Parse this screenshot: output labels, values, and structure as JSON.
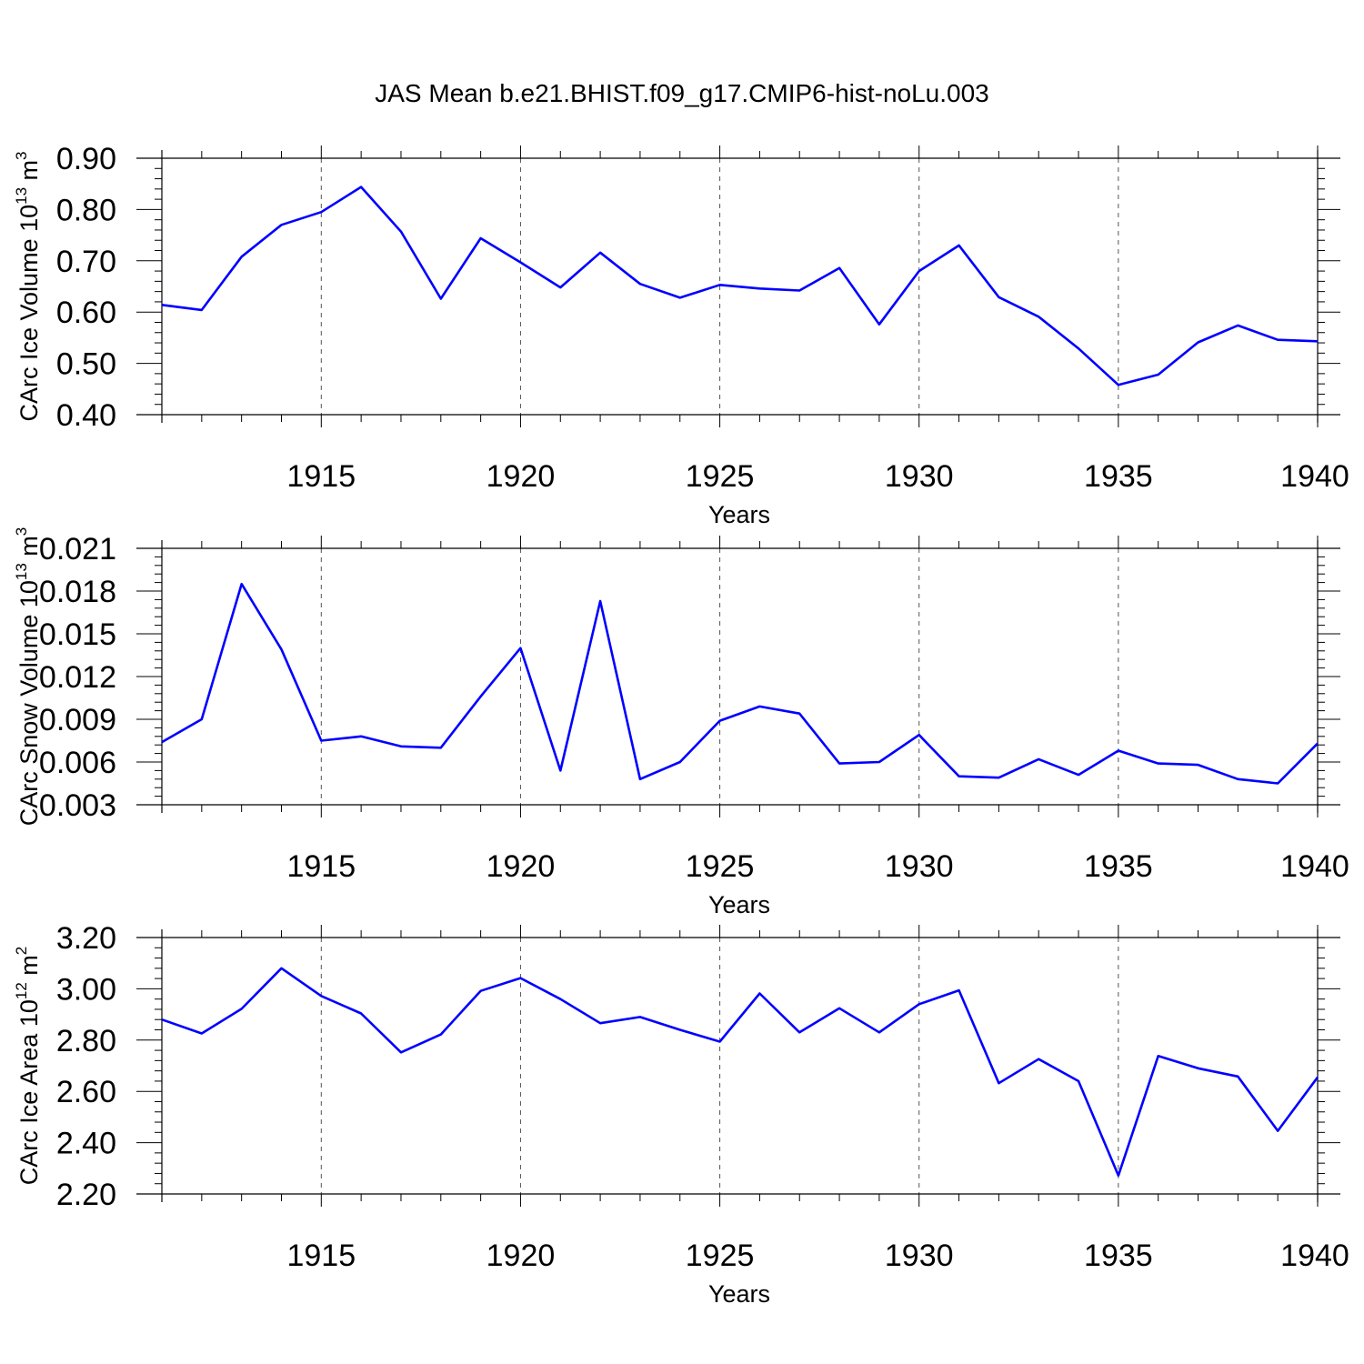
{
  "title": "JAS Mean b.e21.BHIST.f09_g17.CMIP6-hist-noLu.003",
  "chart_data": [
    {
      "type": "line",
      "ylabel_main": "CArc Ice Volume 10",
      "ylabel_exp": "13",
      "ylabel_unit": " m",
      "ylabel_unit_exp": "3",
      "xlabel": "Years",
      "xlim": [
        1911,
        1940
      ],
      "xticks": [
        1915,
        1920,
        1925,
        1930,
        1935,
        1940
      ],
      "ylim": [
        0.4,
        0.9
      ],
      "yticks": [
        "0.40",
        "0.50",
        "0.60",
        "0.70",
        "0.80",
        "0.90"
      ],
      "color": "#0000ff",
      "grid": "vertical dashed at major x ticks",
      "series": [
        {
          "x": [
            1911,
            1912,
            1913,
            1914,
            1915,
            1916,
            1917,
            1918,
            1919,
            1920,
            1921,
            1922,
            1923,
            1924,
            1925,
            1926,
            1927,
            1928,
            1929,
            1930,
            1931,
            1932,
            1933,
            1934,
            1935,
            1936,
            1937,
            1938,
            1939,
            1940
          ],
          "values": [
            0.614,
            0.604,
            0.708,
            0.77,
            0.795,
            0.844,
            0.757,
            0.626,
            0.744,
            0.697,
            0.648,
            0.716,
            0.655,
            0.628,
            0.653,
            0.646,
            0.642,
            0.686,
            0.576,
            0.68,
            0.73,
            0.629,
            0.591,
            0.529,
            0.458,
            0.478,
            0.541,
            0.574,
            0.546,
            0.543
          ]
        }
      ]
    },
    {
      "type": "line",
      "ylabel_main": "CArc Snow Volume 10",
      "ylabel_exp": "13",
      "ylabel_unit": " m",
      "ylabel_unit_exp": "3",
      "xlabel": "Years",
      "xlim": [
        1911,
        1940
      ],
      "xticks": [
        1915,
        1920,
        1925,
        1930,
        1935,
        1940
      ],
      "ylim": [
        0.003,
        0.021
      ],
      "yticks": [
        "0.003",
        "0.006",
        "0.009",
        "0.012",
        "0.015",
        "0.018",
        "0.021"
      ],
      "color": "#0000ff",
      "grid": "vertical dashed at major x ticks",
      "series": [
        {
          "x": [
            1911,
            1912,
            1913,
            1914,
            1915,
            1916,
            1917,
            1918,
            1919,
            1920,
            1921,
            1922,
            1923,
            1924,
            1925,
            1926,
            1927,
            1928,
            1929,
            1930,
            1931,
            1932,
            1933,
            1934,
            1935,
            1936,
            1937,
            1938,
            1939,
            1940
          ],
          "values": [
            0.0074,
            0.009,
            0.0185,
            0.0139,
            0.0075,
            0.0078,
            0.0071,
            0.007,
            0.0106,
            0.014,
            0.0054,
            0.0173,
            0.0048,
            0.006,
            0.0089,
            0.0099,
            0.0094,
            0.0059,
            0.006,
            0.0079,
            0.005,
            0.0049,
            0.0062,
            0.0051,
            0.0068,
            0.0059,
            0.0058,
            0.0048,
            0.0045,
            0.0073
          ]
        }
      ]
    },
    {
      "type": "line",
      "ylabel_main": "CArc Ice Area 10",
      "ylabel_exp": "12",
      "ylabel_unit": " m",
      "ylabel_unit_exp": "2",
      "xlabel": "Years",
      "xlim": [
        1911,
        1940
      ],
      "xticks": [
        1915,
        1920,
        1925,
        1930,
        1935,
        1940
      ],
      "ylim": [
        2.2,
        3.2
      ],
      "yticks": [
        "2.20",
        "2.40",
        "2.60",
        "2.80",
        "3.00",
        "3.20"
      ],
      "color": "#0000ff",
      "grid": "vertical dashed at major x ticks",
      "series": [
        {
          "x": [
            1911,
            1912,
            1913,
            1914,
            1915,
            1916,
            1917,
            1918,
            1919,
            1920,
            1921,
            1922,
            1923,
            1924,
            1925,
            1926,
            1927,
            1928,
            1929,
            1930,
            1931,
            1932,
            1933,
            1934,
            1935,
            1936,
            1937,
            1938,
            1939,
            1940
          ],
          "values": [
            2.88,
            2.826,
            2.922,
            3.08,
            2.972,
            2.904,
            2.752,
            2.822,
            2.992,
            3.042,
            2.96,
            2.866,
            2.89,
            2.84,
            2.794,
            2.982,
            2.83,
            2.924,
            2.83,
            2.94,
            2.994,
            2.632,
            2.726,
            2.64,
            2.272,
            2.738,
            2.69,
            2.658,
            2.446,
            2.655
          ]
        }
      ]
    }
  ]
}
